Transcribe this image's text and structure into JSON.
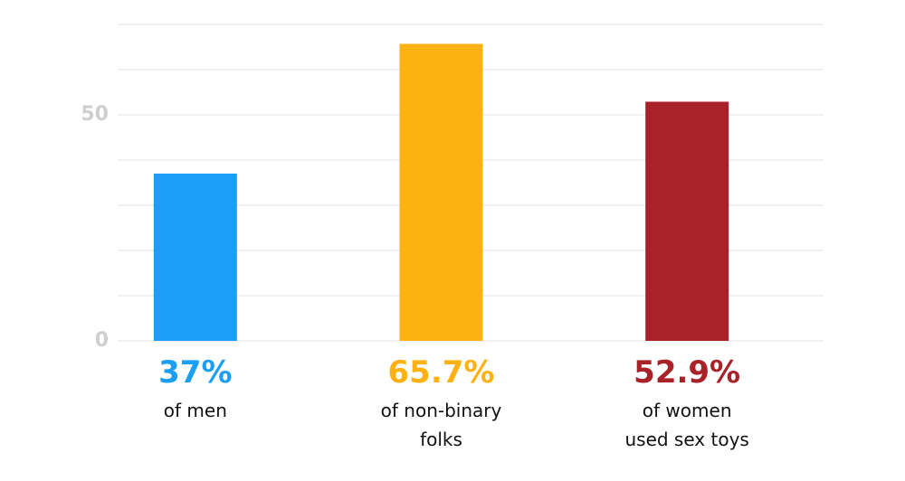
{
  "chart_data": {
    "type": "bar",
    "categories": [
      "of men",
      "of non-binary\nfolks",
      "of women\nused sex toys"
    ],
    "values": [
      37,
      65.7,
      52.9
    ],
    "value_labels": [
      "37%",
      "65.7%",
      "52.9%"
    ],
    "colors": [
      "#1a9ef6",
      "#fdb112",
      "#a82228"
    ],
    "ylim": [
      0,
      70
    ],
    "yticks": [
      0,
      50
    ],
    "gridlines": [
      0,
      10,
      20,
      30,
      40,
      50,
      60,
      70
    ],
    "grid": true
  }
}
